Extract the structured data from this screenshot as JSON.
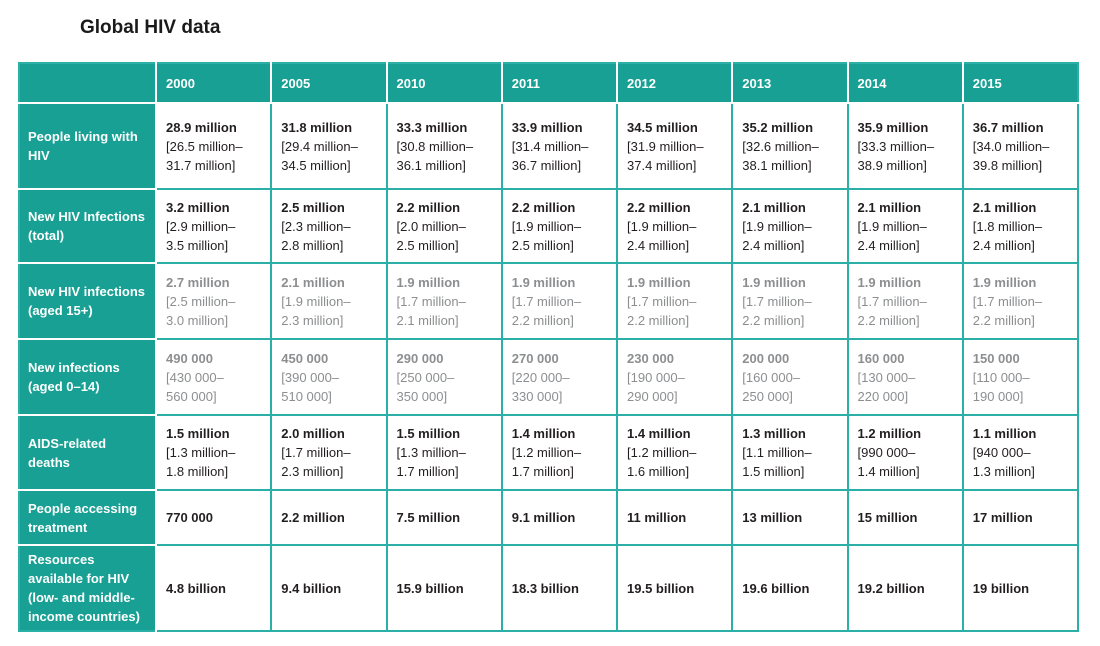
{
  "page": {
    "title": "Global HIV data"
  },
  "colors": {
    "teal_bg": "#17A093",
    "teal_border": "#2AB0A6",
    "text_black": "#231F20",
    "text_gray": "#8C8E90",
    "title_color": "#1A1A1A"
  },
  "chart_data": {
    "type": "table",
    "title": "Global HIV data",
    "columns": [
      "",
      "2000",
      "2005",
      "2010",
      "2011",
      "2012",
      "2013",
      "2014",
      "2015"
    ],
    "rows": [
      {
        "label": "People living with HIV",
        "label_lines": [
          "People living with",
          "HIV"
        ],
        "muted": false,
        "cells": [
          {
            "value": "28.9 million",
            "range": [
              "[26.5 million–",
              "31.7 million]"
            ]
          },
          {
            "value": "31.8 million",
            "range": [
              "[29.4 million–",
              "34.5 million]"
            ]
          },
          {
            "value": "33.3 million",
            "range": [
              "[30.8 million–",
              "36.1 million]"
            ]
          },
          {
            "value": "33.9 million",
            "range": [
              "[31.4 million–",
              "36.7 million]"
            ]
          },
          {
            "value": "34.5 million",
            "range": [
              "[31.9 million–",
              "37.4 million]"
            ]
          },
          {
            "value": "35.2 million",
            "range": [
              "[32.6 million–",
              "38.1 million]"
            ]
          },
          {
            "value": "35.9 million",
            "range": [
              "[33.3 million–",
              "38.9 million]"
            ]
          },
          {
            "value": "36.7 million",
            "range": [
              "[34.0 million–",
              "39.8 million]"
            ]
          }
        ]
      },
      {
        "label": "New HIV Infections (total)",
        "label_lines": [
          "New HIV Infections",
          "(total)"
        ],
        "muted": false,
        "cells": [
          {
            "value": "3.2 million",
            "range": [
              "[2.9 million–",
              "3.5 million]"
            ]
          },
          {
            "value": "2.5 million",
            "range": [
              "[2.3 million–",
              "2.8 million]"
            ]
          },
          {
            "value": "2.2 million",
            "range": [
              "[2.0 million–",
              "2.5 million]"
            ]
          },
          {
            "value": "2.2 million",
            "range": [
              "[1.9 million–",
              "2.5 million]"
            ]
          },
          {
            "value": "2.2 million",
            "range": [
              "[1.9 million–",
              "2.4 million]"
            ]
          },
          {
            "value": "2.1 million",
            "range": [
              "[1.9 million–",
              "2.4 million]"
            ]
          },
          {
            "value": "2.1 million",
            "range": [
              "[1.9 million–",
              "2.4 million]"
            ]
          },
          {
            "value": "2.1 million",
            "range": [
              "[1.8 million–",
              "2.4 million]"
            ]
          }
        ]
      },
      {
        "label": "New HIV infections (aged 15+)",
        "label_lines": [
          "New HIV infections",
          "(aged 15+)"
        ],
        "muted": true,
        "cells": [
          {
            "value": "2.7 million",
            "range": [
              "[2.5 million–",
              "3.0 million]"
            ]
          },
          {
            "value": "2.1 million",
            "range": [
              "[1.9 million–",
              "2.3 million]"
            ]
          },
          {
            "value": "1.9 million",
            "range": [
              "[1.7 million–",
              "2.1 million]"
            ]
          },
          {
            "value": "1.9 million",
            "range": [
              "[1.7 million–",
              "2.2 million]"
            ]
          },
          {
            "value": "1.9 million",
            "range": [
              "[1.7 million–",
              "2.2 million]"
            ]
          },
          {
            "value": "1.9 million",
            "range": [
              "[1.7 million–",
              "2.2 million]"
            ]
          },
          {
            "value": "1.9 million",
            "range": [
              "[1.7 million–",
              "2.2 million]"
            ]
          },
          {
            "value": "1.9 million",
            "range": [
              "[1.7 million–",
              "2.2 million]"
            ]
          }
        ]
      },
      {
        "label": "New infections (aged 0–14)",
        "label_lines": [
          "New infections",
          "(aged 0–14)"
        ],
        "muted": true,
        "cells": [
          {
            "value": "490 000",
            "range": [
              "[430 000–",
              "560 000]"
            ]
          },
          {
            "value": "450 000",
            "range": [
              "[390 000–",
              "510 000]"
            ]
          },
          {
            "value": "290 000",
            "range": [
              "[250 000–",
              "350 000]"
            ]
          },
          {
            "value": "270 000",
            "range": [
              "[220 000–",
              "330 000]"
            ]
          },
          {
            "value": "230 000",
            "range": [
              "[190 000–",
              "290 000]"
            ]
          },
          {
            "value": "200 000",
            "range": [
              "[160 000–",
              "250 000]"
            ]
          },
          {
            "value": "160 000",
            "range": [
              "[130 000–",
              "220 000]"
            ]
          },
          {
            "value": "150 000",
            "range": [
              "[110 000–",
              "190 000]"
            ]
          }
        ]
      },
      {
        "label": "AIDS-related deaths",
        "label_lines": [
          "AIDS-related",
          "deaths"
        ],
        "muted": false,
        "cells": [
          {
            "value": "1.5 million",
            "range": [
              "[1.3 million–",
              "1.8 million]"
            ]
          },
          {
            "value": "2.0 million",
            "range": [
              "[1.7 million–",
              "2.3 million]"
            ]
          },
          {
            "value": "1.5 million",
            "range": [
              "[1.3 million–",
              "1.7 million]"
            ]
          },
          {
            "value": "1.4 million",
            "range": [
              "[1.2 million–",
              "1.7 million]"
            ]
          },
          {
            "value": "1.4 million",
            "range": [
              "[1.2 million–",
              "1.6 million]"
            ]
          },
          {
            "value": "1.3 million",
            "range": [
              "[1.1 million–",
              "1.5 million]"
            ]
          },
          {
            "value": "1.2 million",
            "range": [
              "[990 000–",
              "1.4 million]"
            ]
          },
          {
            "value": "1.1 million",
            "range": [
              "[940 000–",
              "1.3 million]"
            ]
          }
        ]
      },
      {
        "label": "People accessing treatment",
        "label_lines": [
          "People accessing",
          "treatment"
        ],
        "muted": false,
        "cells": [
          {
            "value": "770 000"
          },
          {
            "value": "2.2 million"
          },
          {
            "value": "7.5 million"
          },
          {
            "value": "9.1 million"
          },
          {
            "value": "11 million"
          },
          {
            "value": "13 million"
          },
          {
            "value": "15 million"
          },
          {
            "value": "17 million"
          }
        ]
      },
      {
        "label": "Resources available for HIV (low- and middle-income countries)",
        "label_lines": [
          "Resources",
          "available for HIV",
          "(low- and middle-",
          "income countries)"
        ],
        "muted": false,
        "cells": [
          {
            "value": "4.8 billion"
          },
          {
            "value": "9.4 billion"
          },
          {
            "value": "15.9 billion"
          },
          {
            "value": "18.3 billion"
          },
          {
            "value": "19.5 billion"
          },
          {
            "value": "19.6 billion"
          },
          {
            "value": "19.2 billion"
          },
          {
            "value": "19 billion"
          }
        ]
      }
    ]
  }
}
